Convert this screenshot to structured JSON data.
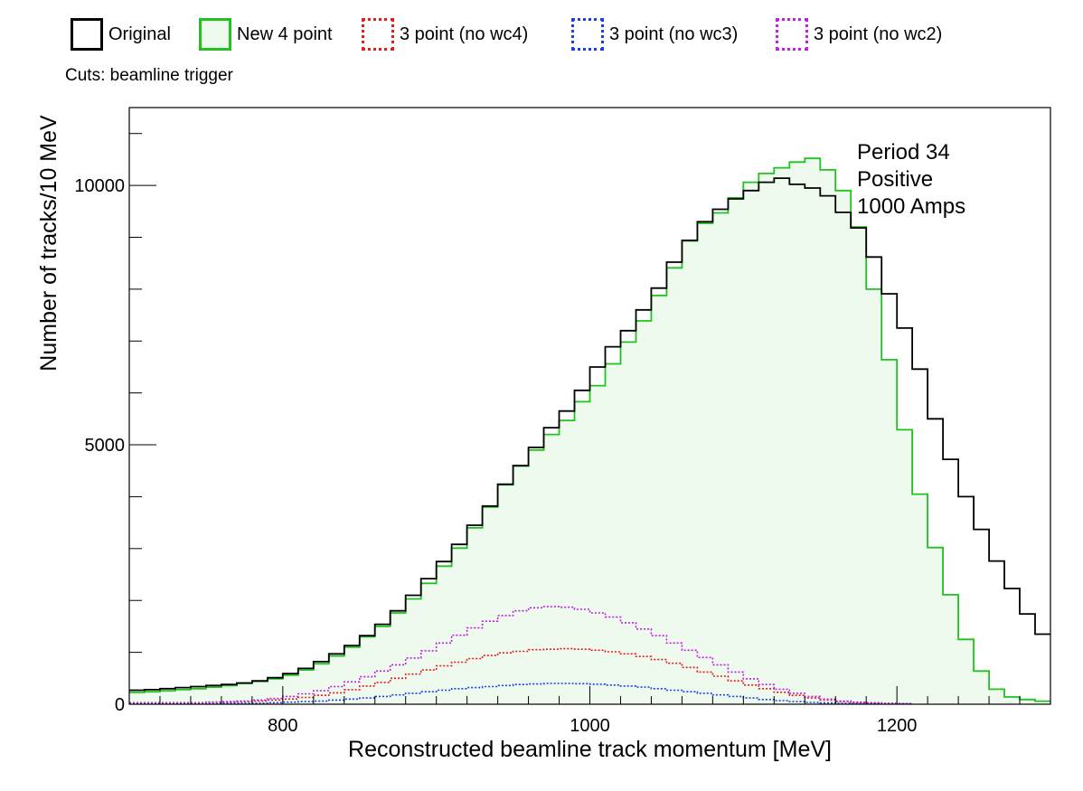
{
  "chart_data": {
    "type": "line",
    "xlabel": "Reconstructed beamline track momentum [MeV]",
    "ylabel": "Number of tracks/10 MeV",
    "xlim": [
      700,
      1300
    ],
    "ylim": [
      0,
      11500
    ],
    "xticks": [
      800,
      1000,
      1200
    ],
    "yticks": [
      0,
      5000,
      10000
    ],
    "grid": false,
    "legend_position": "top",
    "cuts_text": "Cuts: beamline trigger",
    "annotation": [
      "Period 34",
      "Positive",
      "1000 Amps"
    ],
    "bin_edges": [
      700,
      710,
      720,
      730,
      740,
      750,
      760,
      770,
      780,
      790,
      800,
      810,
      820,
      830,
      840,
      850,
      860,
      870,
      880,
      890,
      900,
      910,
      920,
      930,
      940,
      950,
      960,
      970,
      980,
      990,
      1000,
      1010,
      1020,
      1030,
      1040,
      1050,
      1060,
      1070,
      1080,
      1090,
      1100,
      1110,
      1120,
      1130,
      1140,
      1150,
      1160,
      1170,
      1180,
      1190,
      1200,
      1210,
      1220,
      1230,
      1240,
      1250,
      1260,
      1270,
      1280,
      1290,
      1300
    ],
    "series": [
      {
        "name": "Original",
        "color": "#000000",
        "style": "solid",
        "fill": false,
        "values": [
          270,
          280,
          300,
          320,
          340,
          360,
          380,
          410,
          450,
          510,
          590,
          690,
          820,
          970,
          1130,
          1320,
          1540,
          1800,
          2100,
          2420,
          2750,
          3080,
          3450,
          3820,
          4240,
          4600,
          4950,
          5330,
          5650,
          6050,
          6500,
          6890,
          7200,
          7600,
          8020,
          8520,
          8940,
          9300,
          9540,
          9740,
          9900,
          10060,
          10140,
          10020,
          9950,
          9800,
          9480,
          9180,
          8620,
          7910,
          7250,
          6460,
          5500,
          4720,
          4000,
          3370,
          2760,
          2230,
          1740,
          1350,
          1000
        ]
      },
      {
        "name": "New 4 point",
        "color": "#1fc21f",
        "style": "solid",
        "fill": true,
        "fill_color": "#eefaee",
        "values": [
          230,
          240,
          260,
          280,
          300,
          330,
          360,
          400,
          440,
          490,
          560,
          660,
          780,
          930,
          1100,
          1300,
          1500,
          1760,
          2030,
          2330,
          2660,
          3010,
          3400,
          3800,
          4230,
          4590,
          4900,
          5200,
          5470,
          5830,
          6140,
          6560,
          6980,
          7390,
          7880,
          8410,
          8930,
          9270,
          9470,
          9760,
          10060,
          10230,
          10340,
          10450,
          10520,
          10300,
          9900,
          9200,
          8000,
          6640,
          5290,
          4050,
          3020,
          2110,
          1250,
          640,
          290,
          140,
          90,
          60,
          40
        ]
      },
      {
        "name": "3 point (no wc4)",
        "color": "#e51c1c",
        "style": "dotted",
        "fill": false,
        "values": [
          30,
          30,
          30,
          30,
          30,
          40,
          40,
          50,
          60,
          80,
          100,
          130,
          170,
          220,
          280,
          350,
          420,
          500,
          580,
          660,
          740,
          810,
          880,
          940,
          990,
          1020,
          1050,
          1060,
          1070,
          1060,
          1040,
          1010,
          970,
          920,
          860,
          790,
          710,
          620,
          540,
          450,
          370,
          300,
          230,
          170,
          120,
          80,
          50,
          30,
          20,
          10,
          10
        ]
      },
      {
        "name": "3 point (no wc3)",
        "color": "#1c3fe5",
        "style": "dotted",
        "fill": false,
        "values": [
          10,
          10,
          10,
          10,
          10,
          10,
          20,
          20,
          20,
          30,
          40,
          50,
          60,
          80,
          100,
          120,
          150,
          180,
          210,
          240,
          270,
          300,
          320,
          340,
          360,
          380,
          390,
          400,
          400,
          395,
          385,
          370,
          350,
          330,
          300,
          270,
          240,
          210,
          180,
          150,
          120,
          90,
          70,
          50,
          35,
          25,
          15,
          10,
          10,
          10,
          10
        ]
      },
      {
        "name": "3 point (no wc2)",
        "color": "#c21fe5",
        "style": "dotted",
        "fill": false,
        "values": [
          30,
          30,
          30,
          30,
          30,
          40,
          50,
          60,
          80,
          110,
          150,
          200,
          260,
          340,
          430,
          530,
          640,
          760,
          890,
          1030,
          1180,
          1330,
          1470,
          1600,
          1710,
          1800,
          1860,
          1880,
          1870,
          1830,
          1760,
          1680,
          1570,
          1450,
          1320,
          1180,
          1040,
          900,
          760,
          620,
          490,
          380,
          290,
          210,
          150,
          100,
          60,
          40,
          30,
          20,
          10
        ]
      }
    ]
  }
}
